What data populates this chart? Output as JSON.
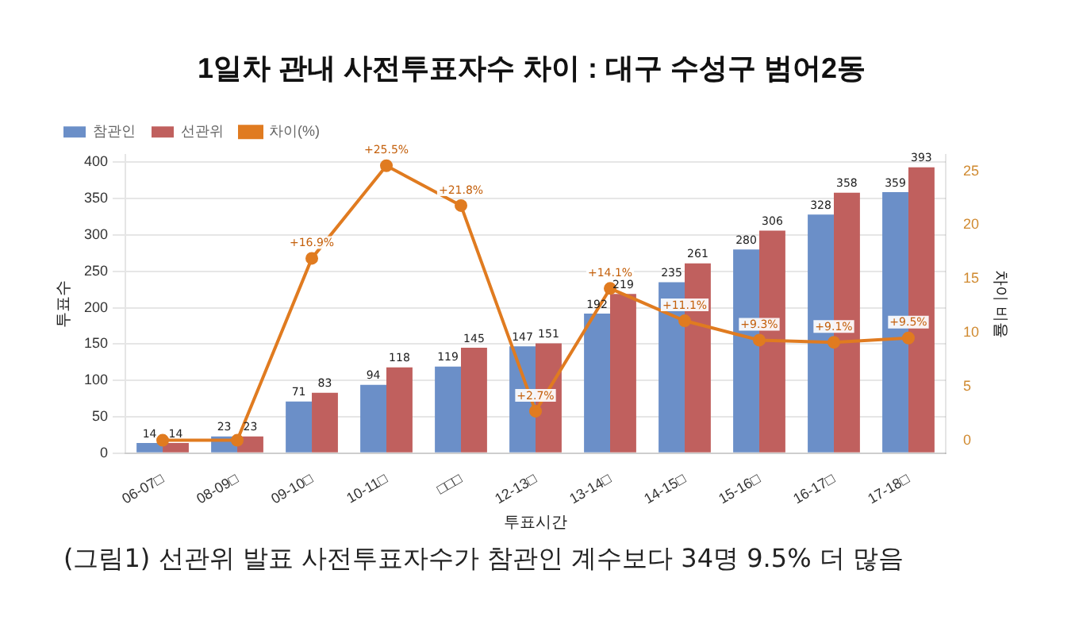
{
  "chart_data": {
    "type": "bar",
    "title": "1일차 관내 사전투표자수 차이 : 대구 수성구 범어2동",
    "xlabel": "투표시간",
    "ylabel": "투표수",
    "y2label": "차이 비율",
    "categories": [
      "06-07□",
      "08-09□",
      "09-10□",
      "10-11□",
      "□□□",
      "12-13□",
      "13-14□",
      "14-15□",
      "15-16□",
      "16-17□",
      "17-18□"
    ],
    "series": [
      {
        "name": "참관인",
        "color": "#6b8fc8",
        "values": [
          14,
          23,
          71,
          94,
          119,
          147,
          192,
          235,
          280,
          328,
          359
        ]
      },
      {
        "name": "선관위",
        "color": "#c0605e",
        "values": [
          14,
          23,
          83,
          118,
          145,
          151,
          219,
          261,
          306,
          358,
          393
        ]
      },
      {
        "name": "차이(%)",
        "type": "line",
        "axis": "y2",
        "color": "#e07b20",
        "marker": "circle",
        "values": [
          0,
          0,
          16.9,
          25.5,
          21.8,
          2.7,
          14.1,
          11.1,
          9.3,
          9.1,
          9.5
        ],
        "value_labels": [
          null,
          null,
          "+16.9%",
          "+25.5%",
          "+21.8%",
          "+2.7%",
          "+14.1%",
          "+11.1%",
          "+9.3%",
          "+9.1%",
          "+9.5%"
        ]
      }
    ],
    "ylim": [
      0,
      410
    ],
    "yticks": [
      0,
      50,
      100,
      150,
      200,
      250,
      300,
      350,
      400
    ],
    "y2lim": [
      -1.2,
      26.5
    ],
    "y2ticks": [
      0,
      5,
      10,
      15,
      20,
      25
    ],
    "grid": "y",
    "legend": "top left",
    "data_labels": true,
    "annotations": [
      "(그림1) 선관위 발표 사전투표자수가 참관인 계수보다 34명 9.5% 더 많음"
    ]
  }
}
